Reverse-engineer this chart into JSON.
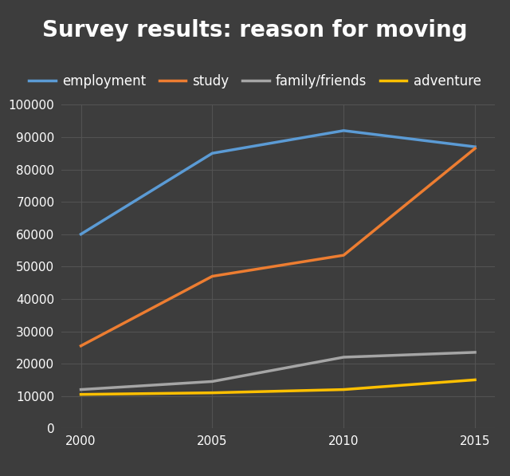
{
  "title": "Survey results: reason for moving",
  "background_color": "#3d3d3d",
  "plot_bg_color": "#3d3d3d",
  "grid_color": "#555555",
  "text_color": "#ffffff",
  "years": [
    2000,
    2005,
    2010,
    2015
  ],
  "series": [
    {
      "label": "employment",
      "color": "#5b9bd5",
      "values": [
        60000,
        85000,
        92000,
        87000
      ]
    },
    {
      "label": "study",
      "color": "#ed7d31",
      "values": [
        25500,
        47000,
        53500,
        86500
      ]
    },
    {
      "label": "family/friends",
      "color": "#a5a5a5",
      "values": [
        12000,
        14500,
        22000,
        23500
      ]
    },
    {
      "label": "adventure",
      "color": "#ffc000",
      "values": [
        10500,
        11000,
        12000,
        15000
      ]
    }
  ],
  "ylim": [
    0,
    100000
  ],
  "yticks": [
    0,
    10000,
    20000,
    30000,
    40000,
    50000,
    60000,
    70000,
    80000,
    90000,
    100000
  ],
  "xticks": [
    2000,
    2005,
    2010,
    2015
  ],
  "title_fontsize": 20,
  "legend_fontsize": 12,
  "tick_fontsize": 11,
  "line_width": 2.5
}
